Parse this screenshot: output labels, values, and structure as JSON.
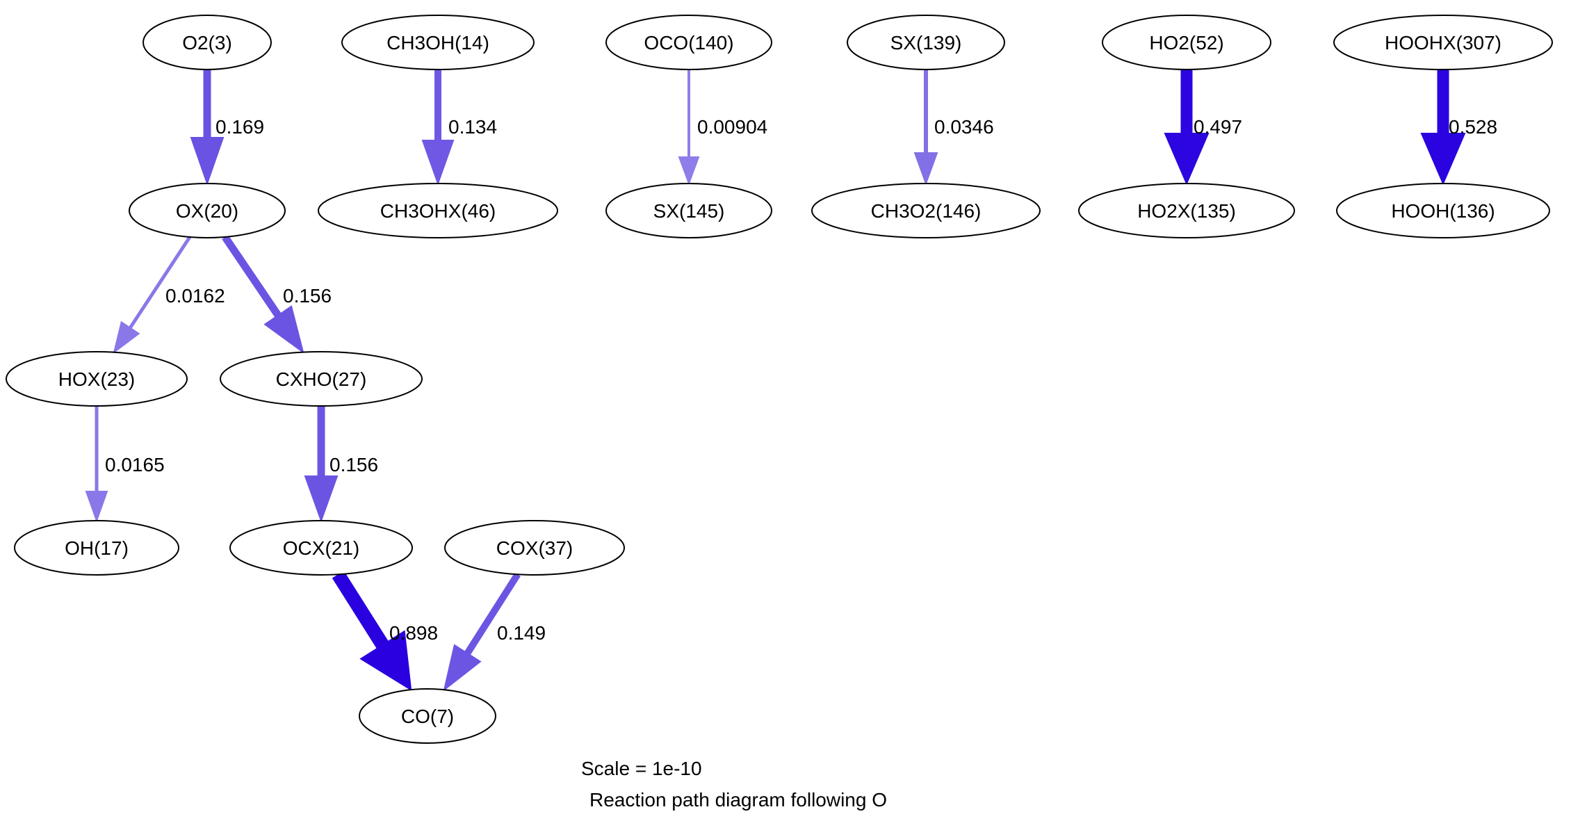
{
  "diagram": {
    "scale_text": "Scale = 1e-10",
    "subtitle": "Reaction path diagram following O"
  },
  "nodes": [
    {
      "id": "o2",
      "label": "O2(3)"
    },
    {
      "id": "ch3oh",
      "label": "CH3OH(14)"
    },
    {
      "id": "oco",
      "label": "OCO(140)"
    },
    {
      "id": "sx139",
      "label": "SX(139)"
    },
    {
      "id": "ho2",
      "label": "HO2(52)"
    },
    {
      "id": "hoohx",
      "label": "HOOHX(307)"
    },
    {
      "id": "ox",
      "label": "OX(20)"
    },
    {
      "id": "ch3ohx",
      "label": "CH3OHX(46)"
    },
    {
      "id": "sx145",
      "label": "SX(145)"
    },
    {
      "id": "ch3o2",
      "label": "CH3O2(146)"
    },
    {
      "id": "ho2x",
      "label": "HO2X(135)"
    },
    {
      "id": "hooh",
      "label": "HOOH(136)"
    },
    {
      "id": "hox",
      "label": "HOX(23)"
    },
    {
      "id": "cxho",
      "label": "CXHO(27)"
    },
    {
      "id": "oh",
      "label": "OH(17)"
    },
    {
      "id": "ocx",
      "label": "OCX(21)"
    },
    {
      "id": "cox",
      "label": "COX(37)"
    },
    {
      "id": "co",
      "label": "CO(7)"
    }
  ],
  "edges": [
    {
      "from": "o2",
      "to": "ox",
      "value": "0.169",
      "color": "#6a52e3"
    },
    {
      "from": "ch3oh",
      "to": "ch3ohx",
      "value": "0.134",
      "color": "#7058e4"
    },
    {
      "from": "oco",
      "to": "sx145",
      "value": "0.00904",
      "color": "#8f7de9"
    },
    {
      "from": "sx139",
      "to": "ch3o2",
      "value": "0.0346",
      "color": "#8270e6"
    },
    {
      "from": "ho2",
      "to": "ho2x",
      "value": "0.497",
      "color": "#2d05e0"
    },
    {
      "from": "hoohx",
      "to": "hooh",
      "value": "0.528",
      "color": "#2b03e0"
    },
    {
      "from": "ox",
      "to": "hox",
      "value": "0.0162",
      "color": "#8a78e8"
    },
    {
      "from": "ox",
      "to": "cxho",
      "value": "0.156",
      "color": "#6c54e3"
    },
    {
      "from": "hox",
      "to": "oh",
      "value": "0.0165",
      "color": "#8a78e8"
    },
    {
      "from": "cxho",
      "to": "ocx",
      "value": "0.156",
      "color": "#6c54e3"
    },
    {
      "from": "ocx",
      "to": "co",
      "value": "0.898",
      "color": "#2a00e0"
    },
    {
      "from": "cox",
      "to": "co",
      "value": "0.149",
      "color": "#6d55e3"
    }
  ]
}
